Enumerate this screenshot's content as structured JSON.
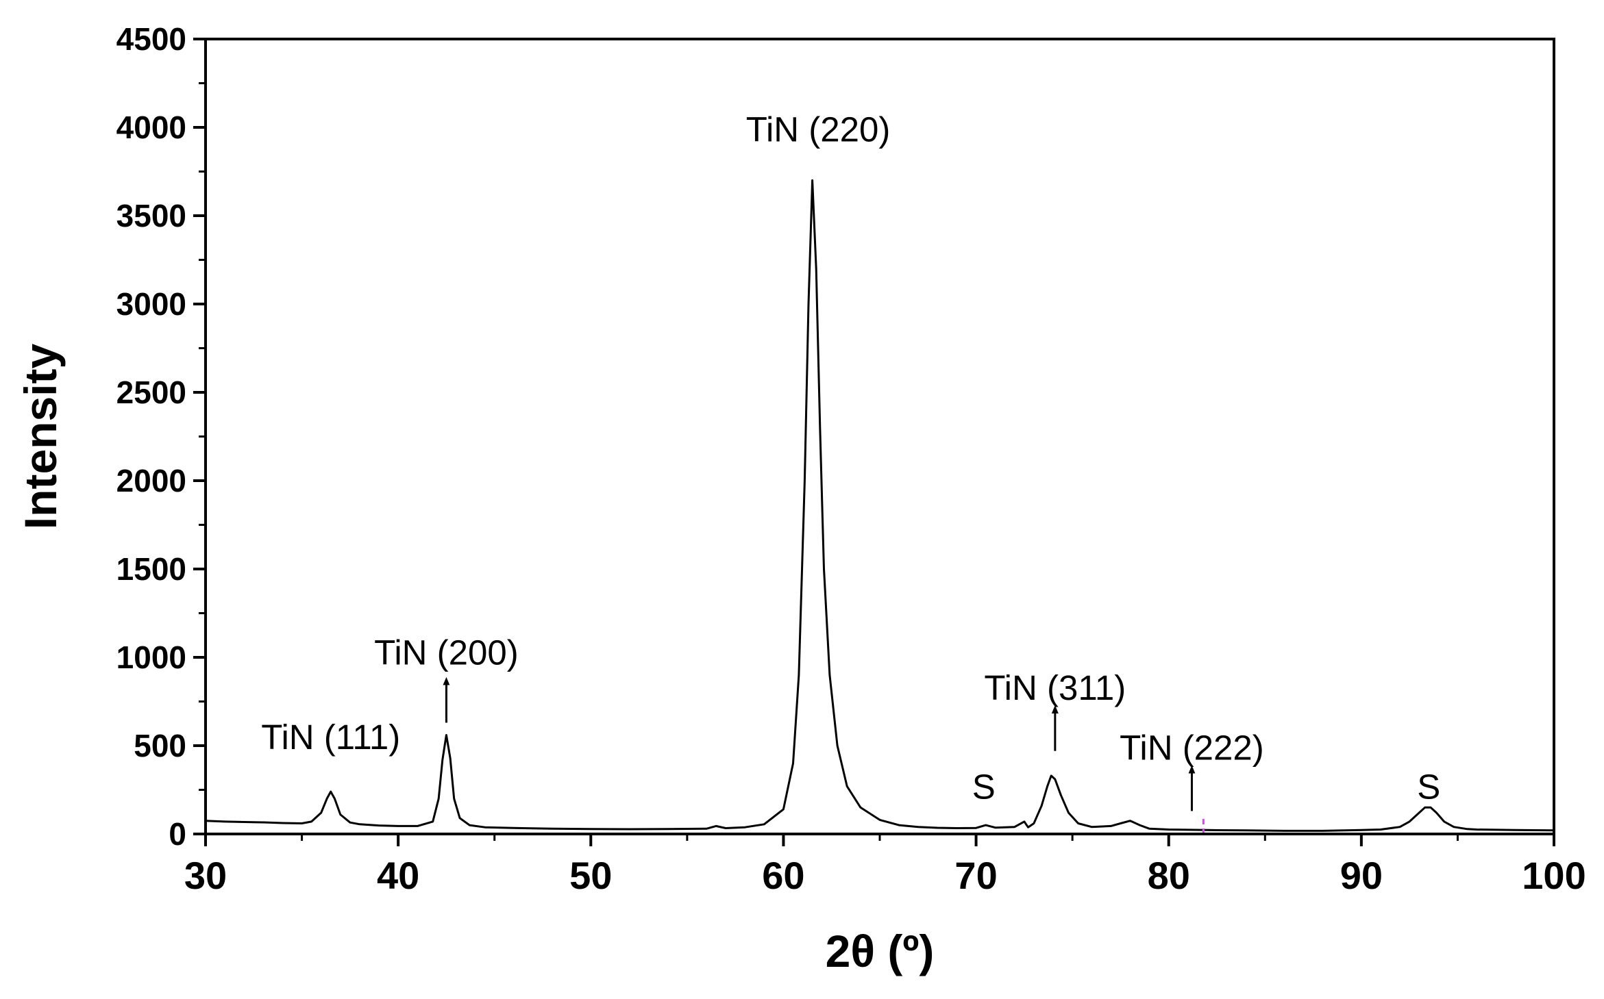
{
  "chart_data": {
    "type": "line",
    "title": "",
    "xlabel": "2θ (º)",
    "ylabel": "Intensity",
    "xlim": [
      30,
      100
    ],
    "ylim": [
      0,
      4500
    ],
    "xticks": [
      30,
      40,
      50,
      60,
      70,
      80,
      90,
      100
    ],
    "yticks": [
      0,
      500,
      1000,
      1500,
      2000,
      2500,
      3000,
      3500,
      4000,
      4500
    ],
    "grid": false,
    "legend": "none",
    "line_color": "#000000",
    "marker_color": "#e040fb",
    "marker_x": 81.8,
    "series": [
      {
        "x": [
          30,
          31,
          32,
          33,
          34,
          35,
          35.5,
          36,
          36.3,
          36.5,
          36.7,
          37,
          37.5,
          38,
          39,
          40,
          41,
          41.8,
          42.1,
          42.3,
          42.5,
          42.7,
          42.9,
          43.2,
          43.7,
          44.5,
          46,
          48,
          50,
          52,
          54,
          56,
          56.5,
          57,
          58,
          59,
          60,
          60.5,
          60.8,
          61.1,
          61.3,
          61.5,
          61.7,
          61.9,
          62.1,
          62.4,
          62.8,
          63.3,
          64,
          65,
          66,
          67,
          68,
          69,
          70,
          70.5,
          71,
          72,
          72.5,
          72.7,
          73,
          73.4,
          73.7,
          73.9,
          74.1,
          74.4,
          74.8,
          75.3,
          76,
          77,
          77.5,
          78,
          78.5,
          79,
          80,
          82,
          84,
          86,
          88,
          90,
          91,
          92,
          92.5,
          93,
          93.3,
          93.6,
          93.9,
          94.3,
          94.8,
          95.5,
          96,
          98,
          100
        ],
        "values": [
          75,
          70,
          68,
          66,
          62,
          60,
          70,
          120,
          200,
          240,
          200,
          110,
          65,
          55,
          48,
          45,
          45,
          70,
          200,
          420,
          560,
          430,
          200,
          90,
          50,
          38,
          34,
          30,
          28,
          27,
          28,
          30,
          45,
          33,
          38,
          55,
          140,
          400,
          900,
          2000,
          3000,
          3700,
          3200,
          2300,
          1500,
          900,
          500,
          270,
          150,
          80,
          50,
          40,
          35,
          33,
          34,
          50,
          36,
          40,
          70,
          38,
          60,
          160,
          270,
          330,
          310,
          220,
          120,
          60,
          40,
          45,
          60,
          75,
          50,
          30,
          25,
          22,
          20,
          18,
          18,
          22,
          25,
          40,
          70,
          120,
          150,
          150,
          120,
          70,
          40,
          28,
          25,
          22,
          20
        ]
      }
    ],
    "annotations": [
      {
        "text": "TiN (111)",
        "x": 36.5,
        "y": 480,
        "arrow": false
      },
      {
        "text": "TiN (200)",
        "x": 42.5,
        "y": 960,
        "arrow": true,
        "arrow_from": 630,
        "arrow_to": 850
      },
      {
        "text": "TiN (220)",
        "x": 61.8,
        "y": 3920,
        "arrow": false
      },
      {
        "text": "S",
        "x": 70.4,
        "y": 200,
        "arrow": false
      },
      {
        "text": "TiN (311)",
        "x": 74.1,
        "y": 760,
        "arrow": true,
        "arrow_from": 470,
        "arrow_to": 690
      },
      {
        "text": "TiN (222)",
        "x": 81.2,
        "y": 420,
        "arrow": true,
        "arrow_from": 130,
        "arrow_to": 350
      },
      {
        "text": "S",
        "x": 93.5,
        "y": 200,
        "arrow": false
      }
    ]
  }
}
